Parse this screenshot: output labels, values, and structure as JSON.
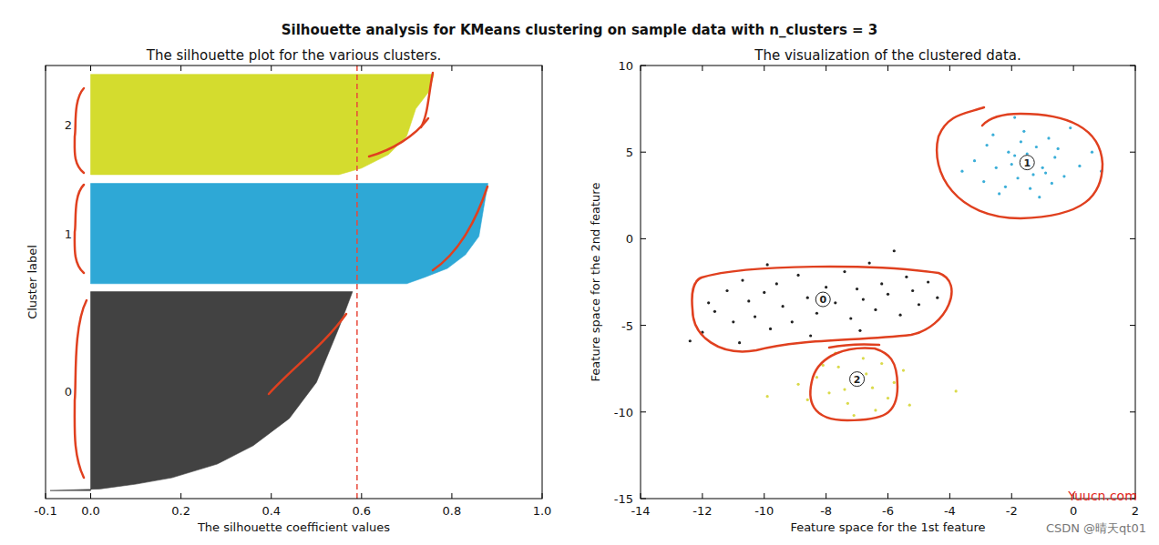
{
  "title": "Silhouette analysis for KMeans clustering on sample data with n_clusters = 3",
  "watermarks": [
    "Yuucn.com",
    "CSDN @晴天qt01"
  ],
  "chart_data": [
    {
      "type": "area",
      "orientation": "horizontal",
      "title": "The silhouette plot for the various clusters.",
      "x_label": "The silhouette coefficient values",
      "y_label": "Cluster label",
      "xlim": [
        -0.1,
        1.0
      ],
      "xticks": [
        -0.1,
        {
          "value": 0,
          "label": "0.0"
        },
        0.2,
        0.4,
        0.6,
        0.8,
        {
          "value": 1,
          "label": "1.0"
        }
      ],
      "ylim": [
        0,
        540
      ],
      "tick_labels": "x",
      "average": 0.59,
      "series": [
        {
          "name": "0",
          "color": "#424242",
          "y": [
            10,
            12,
            18,
            26,
            43,
            66,
            100,
            145,
            213,
            258
          ],
          "values": [
            -0.09,
            0.02,
            0.1,
            0.18,
            0.28,
            0.36,
            0.44,
            0.5,
            0.55,
            0.58
          ]
        },
        {
          "name": "1",
          "color": "#2ea8d6",
          "y": [
            268,
            276,
            287,
            304,
            327,
            361,
            393
          ],
          "values": [
            0.7,
            0.74,
            0.79,
            0.83,
            0.86,
            0.87,
            0.88
          ]
        },
        {
          "name": "2",
          "color": "#d4dc2e",
          "y": [
            404,
            412,
            429,
            452,
            486,
            508,
            529
          ],
          "values": [
            0.55,
            0.6,
            0.66,
            0.7,
            0.72,
            0.75,
            0.76
          ]
        }
      ]
    },
    {
      "type": "scatter",
      "marker": "circle",
      "title": "The visualization of the clustered data.",
      "x_label": "Feature space for the 1st feature",
      "y_label": "Feature space for the 2nd feature",
      "xlim": [
        -14,
        2
      ],
      "xticks": [
        -14,
        -12,
        -10,
        -8,
        -6,
        -4,
        -2,
        0,
        2
      ],
      "ylim": [
        -15,
        10
      ],
      "yticks": [
        -15,
        -10,
        -5,
        0,
        5,
        10
      ],
      "series": [
        {
          "name": "0",
          "color": "#222222",
          "center": [
            -8.1,
            -3.5
          ],
          "x": [
            -12.4,
            -12.0,
            -11.6,
            -11.2,
            -11.0,
            -10.7,
            -10.5,
            -10.3,
            -10.0,
            -9.8,
            -9.6,
            -9.4,
            -9.1,
            -8.9,
            -8.6,
            -8.3,
            -8.0,
            -7.7,
            -7.4,
            -7.2,
            -7.0,
            -6.8,
            -6.6,
            -6.4,
            -6.2,
            -6.0,
            -5.8,
            -5.6,
            -5.4,
            -5.2,
            -5.0,
            -4.7,
            -4.4,
            -11.8,
            -9.9,
            -6.9,
            -8.5,
            -10.8
          ],
          "values": [
            -5.9,
            -5.4,
            -4.2,
            -3.0,
            -4.8,
            -2.4,
            -3.6,
            -4.5,
            -3.1,
            -5.2,
            -2.6,
            -3.9,
            -4.8,
            -2.1,
            -3.4,
            -4.3,
            -2.8,
            -3.7,
            -1.9,
            -4.6,
            -2.9,
            -3.5,
            -1.4,
            -4.1,
            -2.6,
            -3.2,
            -0.7,
            -4.4,
            -2.2,
            -3.0,
            -3.8,
            -2.5,
            -3.4,
            -3.7,
            -1.5,
            -5.3,
            -5.6,
            -6.0
          ]
        },
        {
          "name": "1",
          "color": "#3aaed8",
          "center": [
            -1.5,
            4.4
          ],
          "x": [
            -1.5,
            -2.1,
            -0.9,
            -1.8,
            -1.2,
            -2.5,
            -0.6,
            -1.9,
            -1.0,
            -2.8,
            -0.3,
            -1.4,
            -2.2,
            -0.8,
            -1.6,
            -3.2,
            0.2,
            -2.6,
            -1.1,
            -0.5,
            -2.0,
            -1.3,
            -1.7,
            -3.6,
            0.6,
            -0.1,
            -2.4,
            -1.5,
            -0.7,
            -2.9,
            -1.9,
            0.9
          ],
          "values": [
            4.4,
            5.0,
            3.8,
            3.5,
            5.3,
            4.1,
            4.7,
            4.8,
            4.1,
            5.4,
            3.6,
            2.9,
            3.0,
            5.8,
            6.2,
            4.5,
            4.2,
            6.0,
            2.4,
            5.2,
            4.3,
            3.7,
            5.6,
            3.9,
            5.0,
            6.4,
            2.6,
            4.9,
            3.2,
            3.3,
            7.0,
            3.9
          ]
        },
        {
          "name": "2",
          "color": "#dada4a",
          "center": [
            -7.0,
            -8.1
          ],
          "x": [
            -7.0,
            -7.6,
            -6.5,
            -7.9,
            -6.2,
            -7.3,
            -6.8,
            -8.3,
            -5.8,
            -7.1,
            -6.4,
            -8.6,
            -5.5,
            -7.7,
            -6.0,
            -8.1,
            -6.7,
            -7.4,
            -9.9,
            -3.8,
            -5.3,
            -8.9
          ],
          "values": [
            -8.1,
            -7.4,
            -8.6,
            -8.9,
            -7.2,
            -9.5,
            -6.9,
            -8.0,
            -8.3,
            -10.2,
            -9.9,
            -9.3,
            -7.6,
            -6.6,
            -9.2,
            -7.3,
            -7.8,
            -8.7,
            -9.1,
            -8.8,
            -9.6,
            -8.4
          ]
        }
      ]
    }
  ]
}
